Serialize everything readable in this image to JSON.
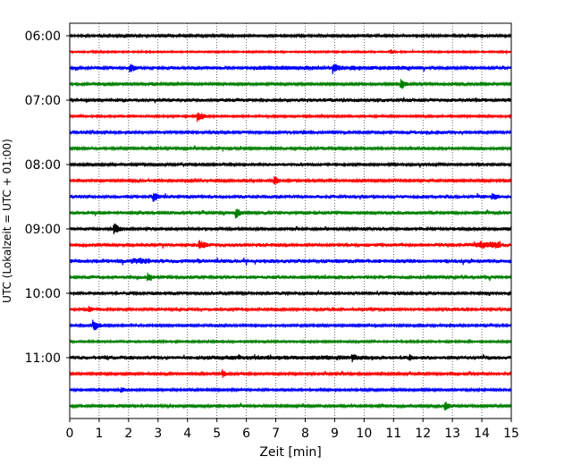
{
  "chart_data": {
    "type": "line",
    "xlabel": "Zeit  [min]",
    "ylabel": "UTC (Lokalzeit = UTC + 01:00)",
    "xlim": [
      0,
      15
    ],
    "x_ticks": [
      0,
      1,
      2,
      3,
      4,
      5,
      6,
      7,
      8,
      9,
      10,
      11,
      12,
      13,
      14,
      15
    ],
    "y_tick_labels": [
      "06:00",
      "07:00",
      "08:00",
      "09:00",
      "10:00",
      "11:00"
    ],
    "grid": "vertical dotted",
    "trace_minutes": 15,
    "colors": [
      "#000000",
      "#ff0000",
      "#0000ff",
      "#008000"
    ],
    "traces": [
      {
        "start": "06:00",
        "color": "#000000",
        "noise": 0.35,
        "events": [
          {
            "t": 13.9,
            "amp": 0.6,
            "dur": 0.8
          }
        ]
      },
      {
        "start": "06:15",
        "color": "#ff0000",
        "noise": 0.25,
        "events": [
          {
            "t": 10.9,
            "amp": 1.0,
            "dur": 0.1
          }
        ]
      },
      {
        "start": "06:30",
        "color": "#0000ff",
        "noise": 0.45,
        "events": [
          {
            "t": 2.05,
            "amp": 2.0,
            "dur": 0.15
          },
          {
            "t": 8.95,
            "amp": 2.2,
            "dur": 0.2
          },
          {
            "t": 9.0,
            "amp": 0.9,
            "dur": 5.5
          }
        ]
      },
      {
        "start": "06:45",
        "color": "#008000",
        "noise": 0.4,
        "events": [
          {
            "t": 2.8,
            "amp": 1.0,
            "dur": 0.1
          },
          {
            "t": 11.25,
            "amp": 2.2,
            "dur": 0.15
          }
        ]
      },
      {
        "start": "07:00",
        "color": "#000000",
        "noise": 0.55,
        "events": [
          {
            "t": 13.8,
            "amp": 0.9,
            "dur": 0.3
          }
        ]
      },
      {
        "start": "07:15",
        "color": "#ff0000",
        "noise": 0.3,
        "events": [
          {
            "t": 4.35,
            "amp": 2.0,
            "dur": 0.2
          }
        ]
      },
      {
        "start": "07:30",
        "color": "#0000ff",
        "noise": 0.45,
        "events": [
          {
            "t": 7.95,
            "amp": 0.9,
            "dur": 0.2
          }
        ]
      },
      {
        "start": "07:45",
        "color": "#008000",
        "noise": 0.4,
        "events": []
      },
      {
        "start": "08:00",
        "color": "#000000",
        "noise": 0.4,
        "events": [
          {
            "t": 7.8,
            "amp": 0.6,
            "dur": 3.5
          },
          {
            "t": 13.9,
            "amp": 0.8,
            "dur": 0.3
          }
        ]
      },
      {
        "start": "08:15",
        "color": "#ff0000",
        "noise": 0.4,
        "events": [
          {
            "t": 6.95,
            "amp": 2.0,
            "dur": 0.15
          }
        ]
      },
      {
        "start": "08:30",
        "color": "#0000ff",
        "noise": 0.5,
        "events": [
          {
            "t": 2.85,
            "amp": 2.0,
            "dur": 0.15
          },
          {
            "t": 14.35,
            "amp": 1.5,
            "dur": 0.25
          }
        ]
      },
      {
        "start": "08:45",
        "color": "#008000",
        "noise": 0.45,
        "events": [
          {
            "t": 4.1,
            "amp": 0.9,
            "dur": 0.2
          },
          {
            "t": 5.65,
            "amp": 2.0,
            "dur": 0.15
          }
        ]
      },
      {
        "start": "09:00",
        "color": "#000000",
        "noise": 0.45,
        "events": [
          {
            "t": 1.5,
            "amp": 2.2,
            "dur": 0.2
          }
        ]
      },
      {
        "start": "09:15",
        "color": "#ff0000",
        "noise": 0.5,
        "events": [
          {
            "t": 4.4,
            "amp": 2.0,
            "dur": 0.2
          },
          {
            "t": 14.2,
            "amp": 1.5,
            "dur": 0.9
          }
        ]
      },
      {
        "start": "09:30",
        "color": "#0000ff",
        "noise": 0.6,
        "events": [
          {
            "t": 2.4,
            "amp": 1.3,
            "dur": 0.6
          },
          {
            "t": 11.6,
            "amp": 0.8,
            "dur": 0.6
          }
        ]
      },
      {
        "start": "09:45",
        "color": "#008000",
        "noise": 0.5,
        "events": [
          {
            "t": 2.65,
            "amp": 1.8,
            "dur": 0.15
          }
        ]
      },
      {
        "start": "10:00",
        "color": "#000000",
        "noise": 0.45,
        "events": []
      },
      {
        "start": "10:15",
        "color": "#ff0000",
        "noise": 0.45,
        "events": [
          {
            "t": 0.65,
            "amp": 1.5,
            "dur": 0.1
          },
          {
            "t": 13.3,
            "amp": 0.8,
            "dur": 0.8
          }
        ]
      },
      {
        "start": "10:30",
        "color": "#0000ff",
        "noise": 0.35,
        "events": [
          {
            "t": 0.8,
            "amp": 2.2,
            "dur": 0.2
          }
        ]
      },
      {
        "start": "10:45",
        "color": "#008000",
        "noise": 0.3,
        "events": []
      },
      {
        "start": "11:00",
        "color": "#000000",
        "noise": 0.55,
        "events": [
          {
            "t": 7.5,
            "amp": 0.9,
            "dur": 6.0
          },
          {
            "t": 9.6,
            "amp": 1.8,
            "dur": 0.15
          },
          {
            "t": 11.55,
            "amp": 1.4,
            "dur": 0.15
          }
        ]
      },
      {
        "start": "11:15",
        "color": "#ff0000",
        "noise": 0.35,
        "events": [
          {
            "t": 5.2,
            "amp": 1.6,
            "dur": 0.1
          }
        ]
      },
      {
        "start": "11:30",
        "color": "#0000ff",
        "noise": 0.35,
        "events": [
          {
            "t": 1.75,
            "amp": 1.1,
            "dur": 0.15
          }
        ]
      },
      {
        "start": "11:45",
        "color": "#008000",
        "noise": 0.4,
        "events": [
          {
            "t": 12.75,
            "amp": 2.0,
            "dur": 0.15
          }
        ]
      }
    ]
  }
}
